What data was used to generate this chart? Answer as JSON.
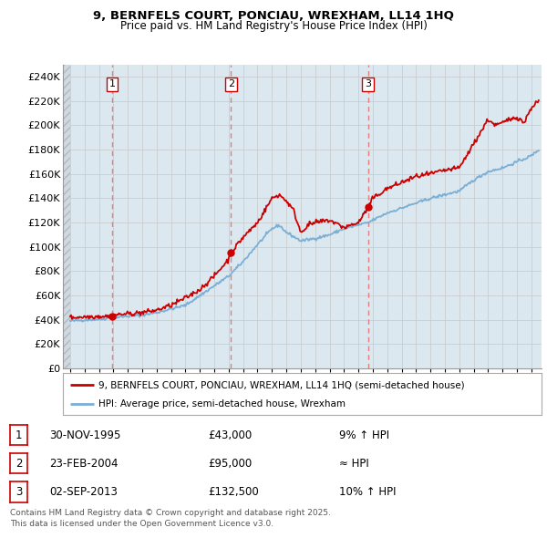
{
  "title": "9, BERNFELS COURT, PONCIAU, WREXHAM, LL14 1HQ",
  "subtitle": "Price paid vs. HM Land Registry's House Price Index (HPI)",
  "legend_line1": "9, BERNFELS COURT, PONCIAU, WREXHAM, LL14 1HQ (semi-detached house)",
  "legend_line2": "HPI: Average price, semi-detached house, Wrexham",
  "footer": "Contains HM Land Registry data © Crown copyright and database right 2025.\nThis data is licensed under the Open Government Licence v3.0.",
  "sales": [
    {
      "num": 1,
      "date_label": "30-NOV-1995",
      "price_label": "£43,000",
      "hpi_label": "9% ↑ HPI",
      "year": 1995.92,
      "price": 43000
    },
    {
      "num": 2,
      "date_label": "23-FEB-2004",
      "price_label": "£95,000",
      "hpi_label": "≈ HPI",
      "year": 2004.15,
      "price": 95000
    },
    {
      "num": 3,
      "date_label": "02-SEP-2013",
      "price_label": "£132,500",
      "hpi_label": "10% ↑ HPI",
      "year": 2013.67,
      "price": 132500
    }
  ],
  "hpi_color": "#7bafd4",
  "price_color": "#cc0000",
  "grid_color": "#c8c8c8",
  "vline_color": "#e87070",
  "bg_color": "#dce8f0",
  "fig_bg": "#ffffff",
  "ylim": [
    0,
    250000
  ],
  "yticks": [
    0,
    20000,
    40000,
    60000,
    80000,
    100000,
    120000,
    140000,
    160000,
    180000,
    200000,
    220000,
    240000
  ],
  "xlim_start": 1992.5,
  "xlim_end": 2025.7
}
